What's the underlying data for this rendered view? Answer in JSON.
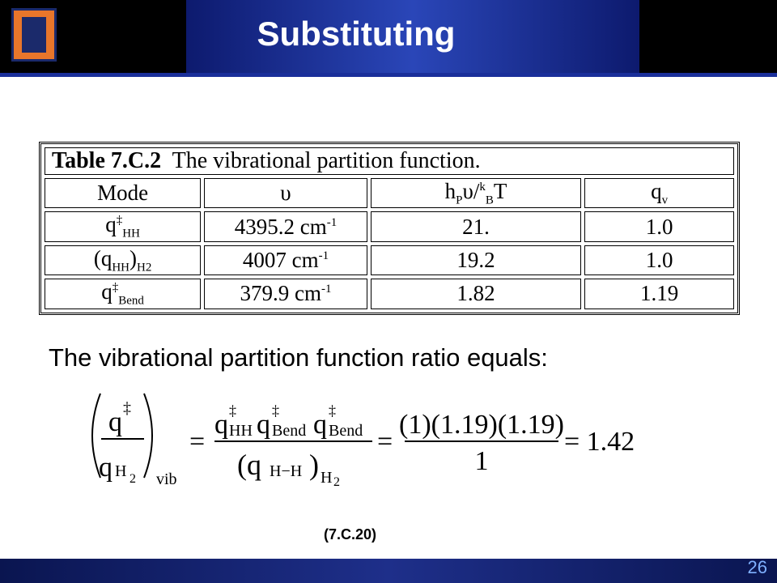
{
  "header": {
    "title": "Substituting"
  },
  "table": {
    "caption_label": "Table 7.C.2",
    "caption_text": "The vibrational partition function.",
    "header": [
      [
        "Mode"
      ],
      [
        "υ"
      ],
      [
        "h",
        "P",
        "υ/",
        "k",
        "B",
        "T"
      ],
      [
        "q",
        "v"
      ]
    ],
    "rows": [
      [
        [
          "q",
          "‡",
          "HH"
        ],
        [
          "4395.2 cm",
          "-1"
        ],
        "21.",
        "1.0"
      ],
      [
        [
          "(q",
          "HH",
          ")",
          "H",
          "2"
        ],
        [
          "4007 cm",
          "-1"
        ],
        "19.2",
        "1.0"
      ],
      [
        [
          "q",
          "‡",
          "Bend"
        ],
        [
          "379.9 cm",
          "-1"
        ],
        "1.82",
        "1.19"
      ]
    ]
  },
  "statement": "The vibrational partition function ratio equals:",
  "equation": {
    "lhs": {
      "num": [
        "q",
        "‡"
      ],
      "den": [
        "q",
        "H",
        "2"
      ],
      "sub": "vib"
    },
    "equals": "=",
    "middle": {
      "num": [
        "q",
        "‡",
        "HH",
        "q",
        "‡",
        "Bend",
        "q",
        "‡",
        "Bend"
      ],
      "den": [
        "(q",
        "H−H",
        ")",
        "H",
        "2"
      ]
    },
    "numeric": {
      "num": "(1)(1.19)(1.19)",
      "den": "1"
    },
    "result": "= 1.42",
    "label": "(7.C.20)"
  },
  "page_number": 26
}
